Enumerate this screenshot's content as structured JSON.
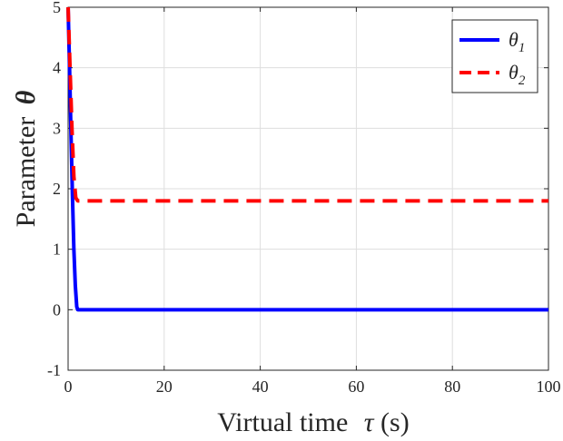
{
  "chart_data": {
    "type": "line",
    "xlabel": "Virtual time",
    "xlabel_symbol": "τ",
    "xlabel_unit": "(s)",
    "ylabel": "Parameter",
    "ylabel_symbol": "θ",
    "xlim": [
      0,
      100
    ],
    "ylim": [
      -1,
      5
    ],
    "xticks": [
      0,
      20,
      40,
      60,
      80,
      100
    ],
    "yticks": [
      -1,
      0,
      1,
      2,
      3,
      4,
      5
    ],
    "grid": true,
    "legend_position": "top-right",
    "series": [
      {
        "name": "θ",
        "name_sub": "1",
        "color": "#0000ff",
        "style": "solid",
        "x": [
          0,
          0.3,
          0.6,
          0.9,
          1.2,
          1.5,
          1.8,
          2.0,
          100
        ],
        "y": [
          5.0,
          4.0,
          2.9,
          1.9,
          1.0,
          0.4,
          0.05,
          0.0,
          0.0
        ]
      },
      {
        "name": "θ",
        "name_sub": "2",
        "color": "#ff0000",
        "style": "dashed",
        "x": [
          0,
          0.4,
          0.8,
          1.2,
          1.6,
          2.0,
          100
        ],
        "y": [
          5.0,
          4.0,
          3.0,
          2.2,
          1.85,
          1.8,
          1.8
        ]
      }
    ]
  }
}
